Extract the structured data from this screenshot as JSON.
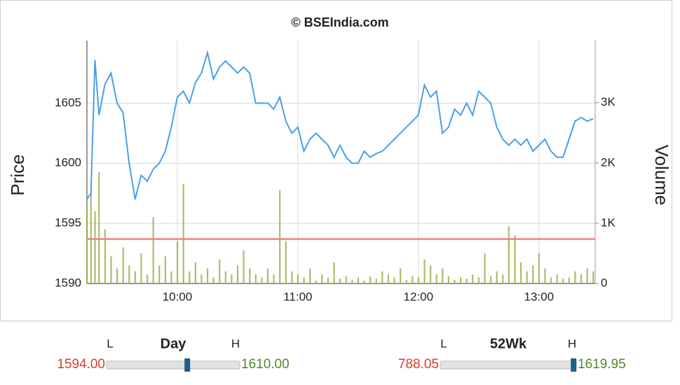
{
  "chart_data": {
    "type": "line",
    "title": "© BSEIndia.com",
    "ylabel": "Price",
    "y2label": "Volume",
    "x": [
      "09:15",
      "09:17",
      "09:19",
      "09:21",
      "09:24",
      "09:27",
      "09:30",
      "09:33",
      "09:36",
      "09:39",
      "09:42",
      "09:45",
      "09:48",
      "09:51",
      "09:54",
      "09:57",
      "10:00",
      "10:03",
      "10:06",
      "10:09",
      "10:12",
      "10:15",
      "10:18",
      "10:21",
      "10:24",
      "10:27",
      "10:30",
      "10:33",
      "10:36",
      "10:39",
      "10:42",
      "10:45",
      "10:48",
      "10:51",
      "10:54",
      "10:57",
      "11:00",
      "11:03",
      "11:06",
      "11:09",
      "11:12",
      "11:15",
      "11:18",
      "11:21",
      "11:24",
      "11:27",
      "11:30",
      "11:33",
      "11:36",
      "11:39",
      "11:42",
      "11:45",
      "11:48",
      "11:51",
      "11:54",
      "11:57",
      "12:00",
      "12:03",
      "12:06",
      "12:09",
      "12:12",
      "12:15",
      "12:18",
      "12:21",
      "12:24",
      "12:27",
      "12:30",
      "12:33",
      "12:36",
      "12:39",
      "12:42",
      "12:45",
      "12:48",
      "12:51",
      "12:54",
      "12:57",
      "13:00",
      "13:03",
      "13:06",
      "13:09",
      "13:12",
      "13:15",
      "13:18",
      "13:21",
      "13:24",
      "13:27"
    ],
    "xlim": [
      "09:15",
      "13:28"
    ],
    "xticks": [
      "10:00",
      "11:00",
      "12:00",
      "13:00"
    ],
    "ylim": [
      1590,
      1610.2
    ],
    "yticks": [
      1590,
      1595,
      1600,
      1605
    ],
    "y2lim": [
      0,
      4030
    ],
    "y2ticks": [
      0,
      {
        "value": 1000,
        "label": "1K"
      },
      {
        "value": 2000,
        "label": "2K"
      },
      {
        "value": 3000,
        "label": "3K"
      }
    ],
    "grid": true,
    "series": [
      {
        "type": "line",
        "color": "#4a9eea",
        "values": [
          1597,
          1597.5,
          1608.6,
          1604,
          1606.6,
          1607.5,
          1605,
          1604.2,
          1600,
          1597,
          1599,
          1598.5,
          1599.5,
          1600,
          1601,
          1603,
          1605.5,
          1606,
          1605,
          1606.7,
          1607.5,
          1609.2,
          1607,
          1608,
          1608.5,
          1608,
          1607.5,
          1608,
          1607.5,
          1605,
          1605,
          1605,
          1604.5,
          1605.5,
          1603.5,
          1602.5,
          1603,
          1601,
          1602,
          1602.5,
          1602,
          1601.5,
          1600.5,
          1601.5,
          1600.5,
          1600,
          1600,
          1601,
          1600.5,
          1600.8,
          1601,
          1601.5,
          1602,
          1602.5,
          1603,
          1603.5,
          1604,
          1606.5,
          1605.5,
          1606,
          1602.5,
          1603,
          1604.5,
          1604,
          1605,
          1604,
          1606,
          1605.5,
          1605,
          1603,
          1602,
          1601.5,
          1602,
          1601.5,
          1602,
          1601,
          1601.5,
          1602,
          1601,
          1600.5,
          1600.5,
          1602,
          1603.5,
          1603.8,
          1603.5,
          1603.7
        ]
      },
      {
        "type": "bar",
        "axis": "y2",
        "color": "#9fb04e",
        "values": [
          1200,
          1500,
          1200,
          1850,
          900,
          450,
          250,
          600,
          300,
          200,
          500,
          150,
          1100,
          300,
          450,
          200,
          700,
          1650,
          200,
          350,
          150,
          250,
          100,
          400,
          200,
          150,
          300,
          550,
          250,
          150,
          100,
          250,
          150,
          1550,
          700,
          200,
          150,
          100,
          250,
          50,
          150,
          100,
          350,
          80,
          120,
          60,
          100,
          50,
          120,
          80,
          200,
          150,
          100,
          250,
          60,
          120,
          100,
          400,
          300,
          150,
          250,
          120,
          60,
          100,
          80,
          150,
          100,
          500,
          120,
          200,
          150,
          950,
          800,
          350,
          200,
          300,
          500,
          250,
          100,
          150,
          80,
          100,
          200,
          150,
          250,
          200
        ]
      }
    ],
    "reference_line": {
      "value": 1593.7,
      "color": "#f08080"
    }
  },
  "ranges": [
    {
      "title": "Day",
      "low_tag": "L",
      "high_tag": "H",
      "low": "1594.00",
      "high": "1610.00"
    },
    {
      "title": "52Wk",
      "low_tag": "L",
      "high_tag": "H",
      "low": "788.05",
      "high": "1619.95"
    }
  ]
}
